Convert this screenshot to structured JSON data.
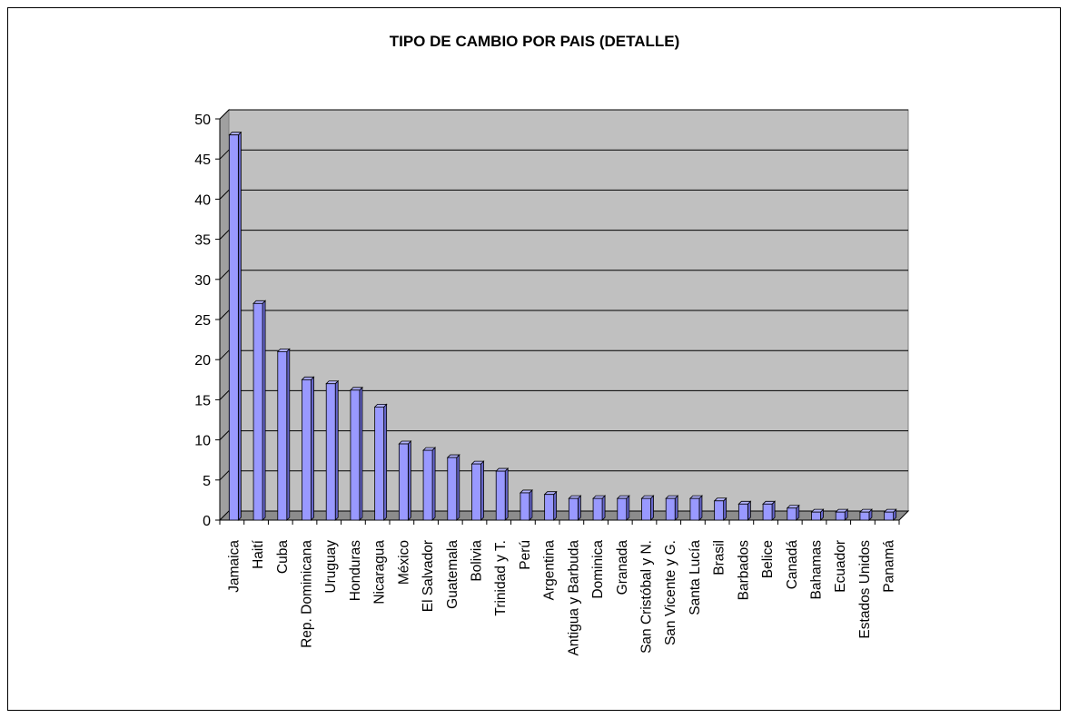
{
  "chart_data": {
    "type": "bar",
    "title": "TIPO DE CAMBIO POR PAIS (DETALLE)",
    "xlabel": "",
    "ylabel": "",
    "ylim": [
      0,
      50
    ],
    "yticks": [
      0,
      5,
      10,
      15,
      20,
      25,
      30,
      35,
      40,
      45,
      50
    ],
    "grid": true,
    "legend": "none",
    "categories": [
      "Jamaica",
      "Haití",
      "Cuba",
      "Rep. Dominicana",
      "Uruguay",
      "Honduras",
      "Nicaragua",
      "México",
      "El Salvador",
      "Guatemala",
      "Bolivia",
      "Trinidad y T.",
      "Perú",
      "Argentina",
      "Antigua y Barbuda",
      "Dominica",
      "Granada",
      "San Cristóbal y N.",
      "San Vicente y G.",
      "Santa Lucía",
      "Brasil",
      "Barbados",
      "Belice",
      "Canadá",
      "Bahamas",
      "Ecuador",
      "Estados Unidos",
      "Panamá"
    ],
    "values": [
      48,
      27,
      21,
      17.5,
      17,
      16.2,
      14.1,
      9.5,
      8.7,
      7.8,
      7,
      6.1,
      3.4,
      3.2,
      2.7,
      2.7,
      2.7,
      2.7,
      2.7,
      2.7,
      2.4,
      2,
      2,
      1.5,
      1,
      1,
      1,
      1
    ],
    "colors": {
      "bar_front": "#9999ff",
      "bar_top": "#b3b3ff",
      "bar_side": "#6666cc",
      "back_wall": "#c0c0c0",
      "side_wall": "#a0a0a0",
      "floor": "#8c8c8c",
      "gridline": "#000000"
    }
  }
}
